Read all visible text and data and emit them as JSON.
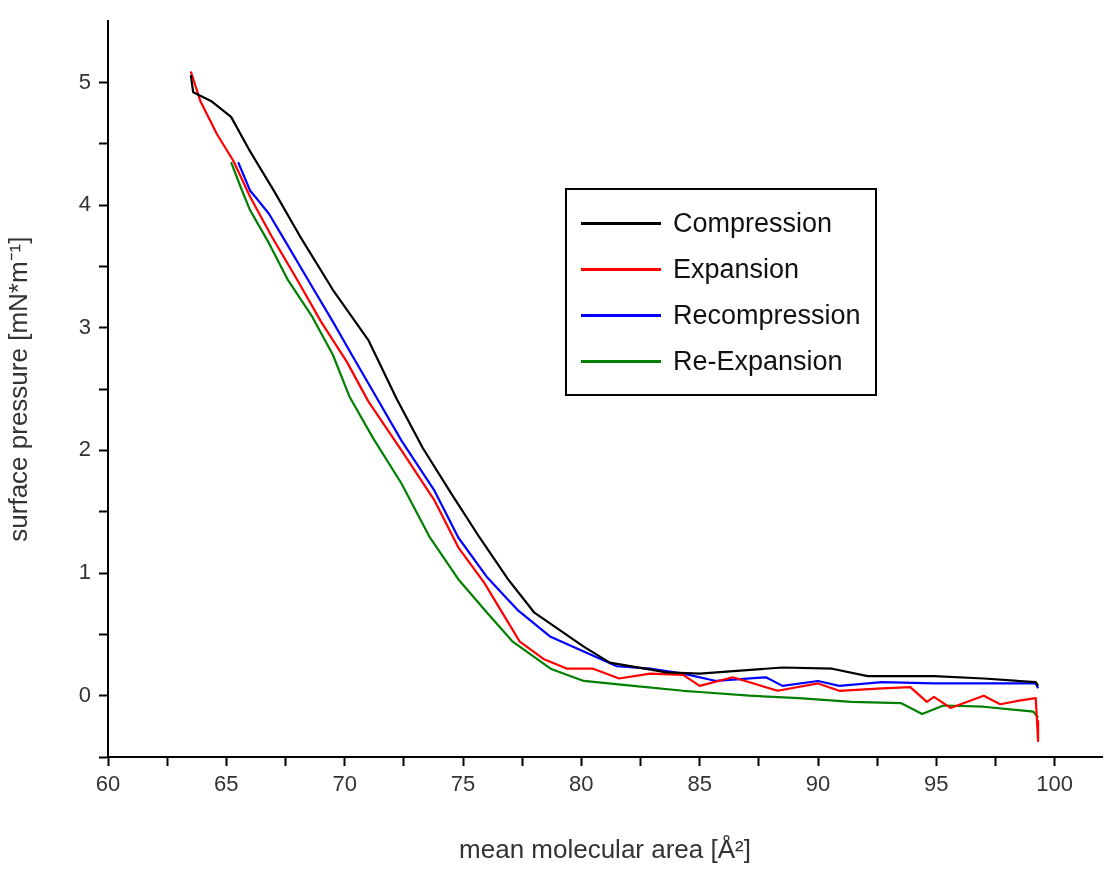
{
  "chart_data": {
    "type": "line",
    "xlabel": "mean molecular area [Å²]",
    "ylabel": "surface pressure [mN*m⁻¹]",
    "xlim": [
      60,
      102
    ],
    "ylim": [
      -0.5,
      5.5
    ],
    "xticks": [
      60,
      {
        "value": 62.5,
        "label": null
      },
      65,
      {
        "value": 67.5,
        "label": null
      },
      70,
      {
        "value": 72.5,
        "label": null
      },
      75,
      {
        "value": 77.5,
        "label": null
      },
      80,
      {
        "value": 82.5,
        "label": null
      },
      85,
      {
        "value": 87.5,
        "label": null
      },
      90,
      {
        "value": 92.5,
        "label": null
      },
      95,
      {
        "value": 97.5,
        "label": null
      },
      100
    ],
    "yticks": [
      {
        "value": -0.5,
        "label": null
      },
      0,
      {
        "value": 0.5,
        "label": null
      },
      1,
      {
        "value": 1.5,
        "label": null
      },
      2,
      {
        "value": 2.5,
        "label": null
      },
      3,
      {
        "value": 3.5,
        "label": null
      },
      4,
      {
        "value": 4.5,
        "label": null
      },
      5
    ],
    "grid": false,
    "legend": "top right",
    "marker": "none",
    "line_style": "solid",
    "series": [
      {
        "name": "Compression",
        "color": "#000000",
        "x": [
          63.5,
          63.6,
          64.35,
          65.2,
          66.0,
          67.0,
          68.1,
          69.5,
          71.0,
          72.2,
          73.3,
          74.5,
          75.7,
          76.9,
          78.0,
          80.1,
          81.2,
          83.6,
          85.0,
          88.5,
          90.6,
          92.1,
          94.9,
          97.0,
          99.2,
          99.3
        ],
        "values": [
          5.06,
          4.92,
          4.85,
          4.72,
          4.44,
          4.12,
          3.75,
          3.31,
          2.9,
          2.42,
          2.02,
          1.65,
          1.29,
          0.95,
          0.68,
          0.4,
          0.27,
          0.19,
          0.18,
          0.23,
          0.22,
          0.16,
          0.16,
          0.14,
          0.11,
          0.08
        ]
      },
      {
        "name": "Expansion",
        "color": "#ff0000",
        "x": [
          63.5,
          63.9,
          64.6,
          65.3,
          66.0,
          66.9,
          68.0,
          69.0,
          70.1,
          71.0,
          72.4,
          73.8,
          74.8,
          75.9,
          76.9,
          77.4,
          78.4,
          79.4,
          80.5,
          81.6,
          82.9,
          84.3,
          85.0,
          86.4,
          88.3,
          90.0,
          90.9,
          92.7,
          93.9,
          94.6,
          94.9,
          95.6,
          97.0,
          97.7,
          98.5,
          99.2,
          99.3,
          99.3
        ],
        "values": [
          5.09,
          4.85,
          4.58,
          4.36,
          4.07,
          3.75,
          3.39,
          3.05,
          2.72,
          2.4,
          2.0,
          1.59,
          1.21,
          0.92,
          0.6,
          0.44,
          0.3,
          0.22,
          0.22,
          0.14,
          0.18,
          0.17,
          0.08,
          0.15,
          0.04,
          0.1,
          0.04,
          0.06,
          0.07,
          -0.05,
          -0.01,
          -0.1,
          0.0,
          -0.07,
          -0.04,
          -0.02,
          -0.37,
          -0.2
        ]
      },
      {
        "name": "Recompression",
        "color": "#0000ff",
        "x": [
          65.5,
          66.0,
          66.8,
          67.6,
          68.7,
          69.5,
          70.3,
          71.2,
          72.4,
          73.8,
          74.8,
          76.0,
          77.3,
          78.7,
          80.1,
          81.5,
          82.9,
          84.3,
          85.7,
          87.8,
          88.5,
          90.0,
          90.9,
          92.7,
          94.9,
          97.0,
          99.2,
          99.3
        ],
        "values": [
          4.35,
          4.12,
          3.93,
          3.67,
          3.31,
          3.05,
          2.78,
          2.48,
          2.08,
          1.67,
          1.29,
          0.97,
          0.7,
          0.48,
          0.36,
          0.24,
          0.22,
          0.18,
          0.12,
          0.15,
          0.08,
          0.12,
          0.08,
          0.11,
          0.1,
          0.1,
          0.1,
          0.06
        ]
      },
      {
        "name": "Re-Expansion",
        "color": "#008000",
        "x": [
          65.2,
          65.6,
          66.0,
          66.8,
          67.6,
          68.6,
          69.5,
          70.2,
          71.2,
          72.4,
          73.6,
          74.8,
          76.0,
          77.1,
          78.7,
          80.1,
          82.2,
          84.3,
          85.0,
          87.1,
          89.2,
          91.4,
          93.5,
          94.4,
          95.3,
          97.0,
          99.1,
          99.3
        ],
        "values": [
          4.35,
          4.15,
          3.96,
          3.69,
          3.39,
          3.1,
          2.78,
          2.44,
          2.1,
          1.73,
          1.29,
          0.95,
          0.68,
          0.44,
          0.22,
          0.12,
          0.08,
          0.04,
          0.03,
          0.0,
          -0.02,
          -0.05,
          -0.06,
          -0.15,
          -0.08,
          -0.09,
          -0.13,
          -0.18
        ]
      }
    ]
  }
}
